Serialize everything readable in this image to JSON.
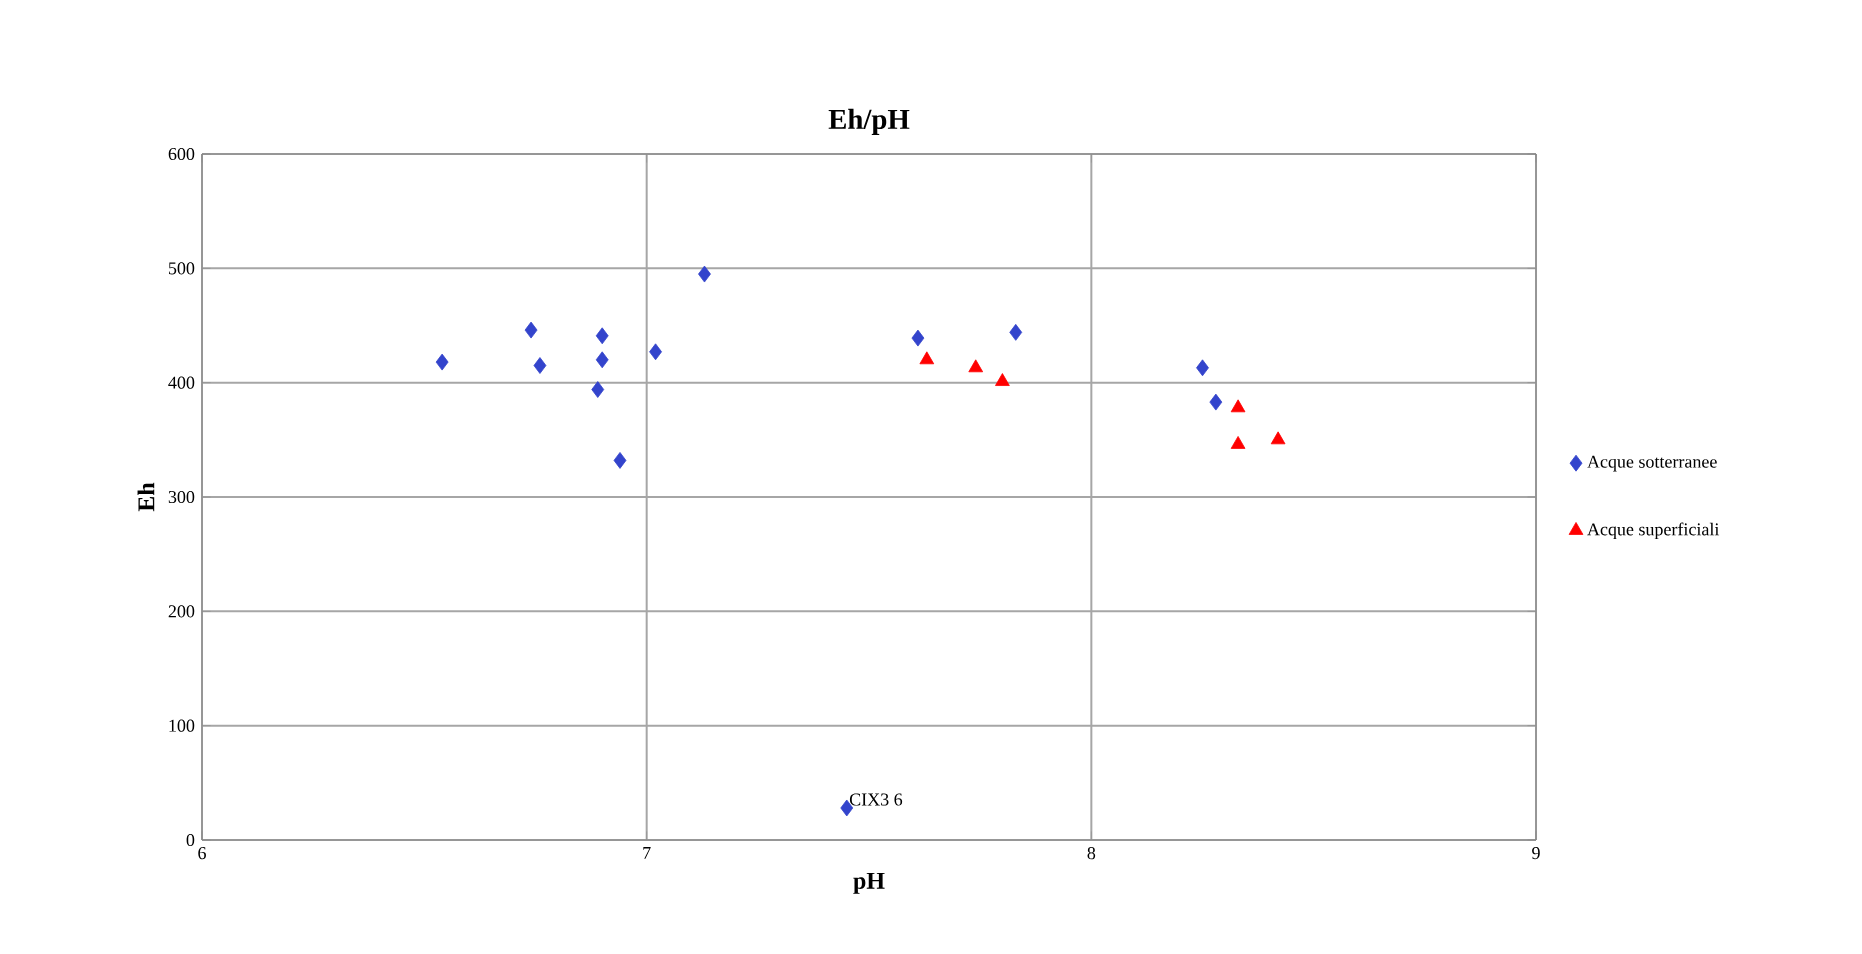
{
  "chart_data": {
    "type": "scatter",
    "title": "Eh/pH",
    "xlabel": "pH",
    "ylabel": "Eh",
    "xlim": [
      6,
      9
    ],
    "xticks": [
      6,
      7,
      8,
      9
    ],
    "ylim": [
      0,
      600
    ],
    "yticks": [
      0,
      100,
      200,
      300,
      400,
      500,
      600
    ],
    "grid": true,
    "legend": "right",
    "series": [
      {
        "name": "Acque sotterranee",
        "color": "#3344cc",
        "marker": "diamond",
        "x": [
          6.54,
          6.74,
          6.76,
          6.9,
          6.9,
          6.89,
          6.94,
          7.02,
          7.13,
          7.61,
          7.83,
          8.25,
          8.28,
          7.45
        ],
        "values": [
          418,
          446,
          415,
          441,
          420,
          394,
          332,
          427,
          495,
          439,
          444,
          413,
          383,
          28
        ]
      },
      {
        "name": "Acque superficiali",
        "color": "#ff0000",
        "marker": "triangle",
        "x": [
          7.63,
          7.74,
          7.8,
          8.33,
          8.33,
          8.42
        ],
        "values": [
          420,
          413,
          401,
          378,
          346,
          350
        ]
      }
    ],
    "annotations": [
      {
        "text": "CIX3 6",
        "x": 7.45,
        "y": 28
      }
    ]
  }
}
